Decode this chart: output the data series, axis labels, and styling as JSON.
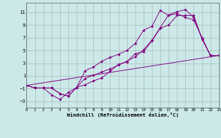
{
  "xlabel": "Windchill (Refroidissement éolien,°C)",
  "bg_color": "#cce8e8",
  "grid_color": "#aabbbb",
  "line_color": "#800080",
  "xlim": [
    0,
    23
  ],
  "ylim": [
    -4,
    12.5
  ],
  "xticks": [
    0,
    1,
    2,
    3,
    4,
    5,
    6,
    7,
    8,
    9,
    10,
    11,
    12,
    13,
    14,
    15,
    16,
    17,
    18,
    19,
    20,
    21,
    22,
    23
  ],
  "yticks": [
    -3,
    -1,
    1,
    3,
    5,
    7,
    9,
    11
  ],
  "series": [
    {
      "x": [
        0,
        1,
        2,
        3,
        4,
        5,
        6,
        7,
        8,
        9,
        10,
        11,
        12,
        13,
        14,
        15,
        16,
        17,
        18,
        19,
        20,
        21,
        22,
        23
      ],
      "y": [
        -0.5,
        -0.9,
        -0.9,
        -2.0,
        -2.7,
        -1.6,
        -0.8,
        -0.4,
        0.2,
        0.7,
        1.7,
        2.8,
        3.2,
        4.5,
        4.8,
        6.5,
        8.5,
        9.0,
        10.5,
        10.5,
        10.5,
        6.8,
        4.2,
        4.2
      ],
      "marker": true
    },
    {
      "x": [
        0,
        1,
        2,
        3,
        4,
        5,
        6,
        7,
        8,
        9,
        10,
        11,
        12,
        13,
        14,
        15,
        16,
        17,
        18,
        19,
        20,
        21,
        22,
        23
      ],
      "y": [
        -0.5,
        -0.9,
        -0.9,
        -0.9,
        -1.8,
        -2.2,
        -0.8,
        1.8,
        2.4,
        3.3,
        3.9,
        4.4,
        5.0,
        6.1,
        8.2,
        8.8,
        11.3,
        10.5,
        10.8,
        10.2,
        9.8,
        7.0,
        4.2,
        4.2
      ],
      "marker": true
    },
    {
      "x": [
        0,
        1,
        2,
        3,
        4,
        5,
        6,
        7,
        8,
        9,
        10,
        11,
        12,
        13,
        14,
        15,
        16,
        17,
        18,
        19,
        20,
        21,
        22,
        23
      ],
      "y": [
        -0.5,
        -0.9,
        -0.9,
        -0.9,
        -1.8,
        -2.2,
        -0.8,
        0.6,
        1.1,
        1.6,
        2.1,
        2.7,
        3.3,
        4.0,
        5.1,
        6.6,
        8.6,
        10.6,
        11.1,
        11.4,
        10.2,
        6.8,
        4.2,
        4.2
      ],
      "marker": true
    },
    {
      "x": [
        0,
        23
      ],
      "y": [
        -0.5,
        4.2
      ],
      "marker": false
    }
  ]
}
